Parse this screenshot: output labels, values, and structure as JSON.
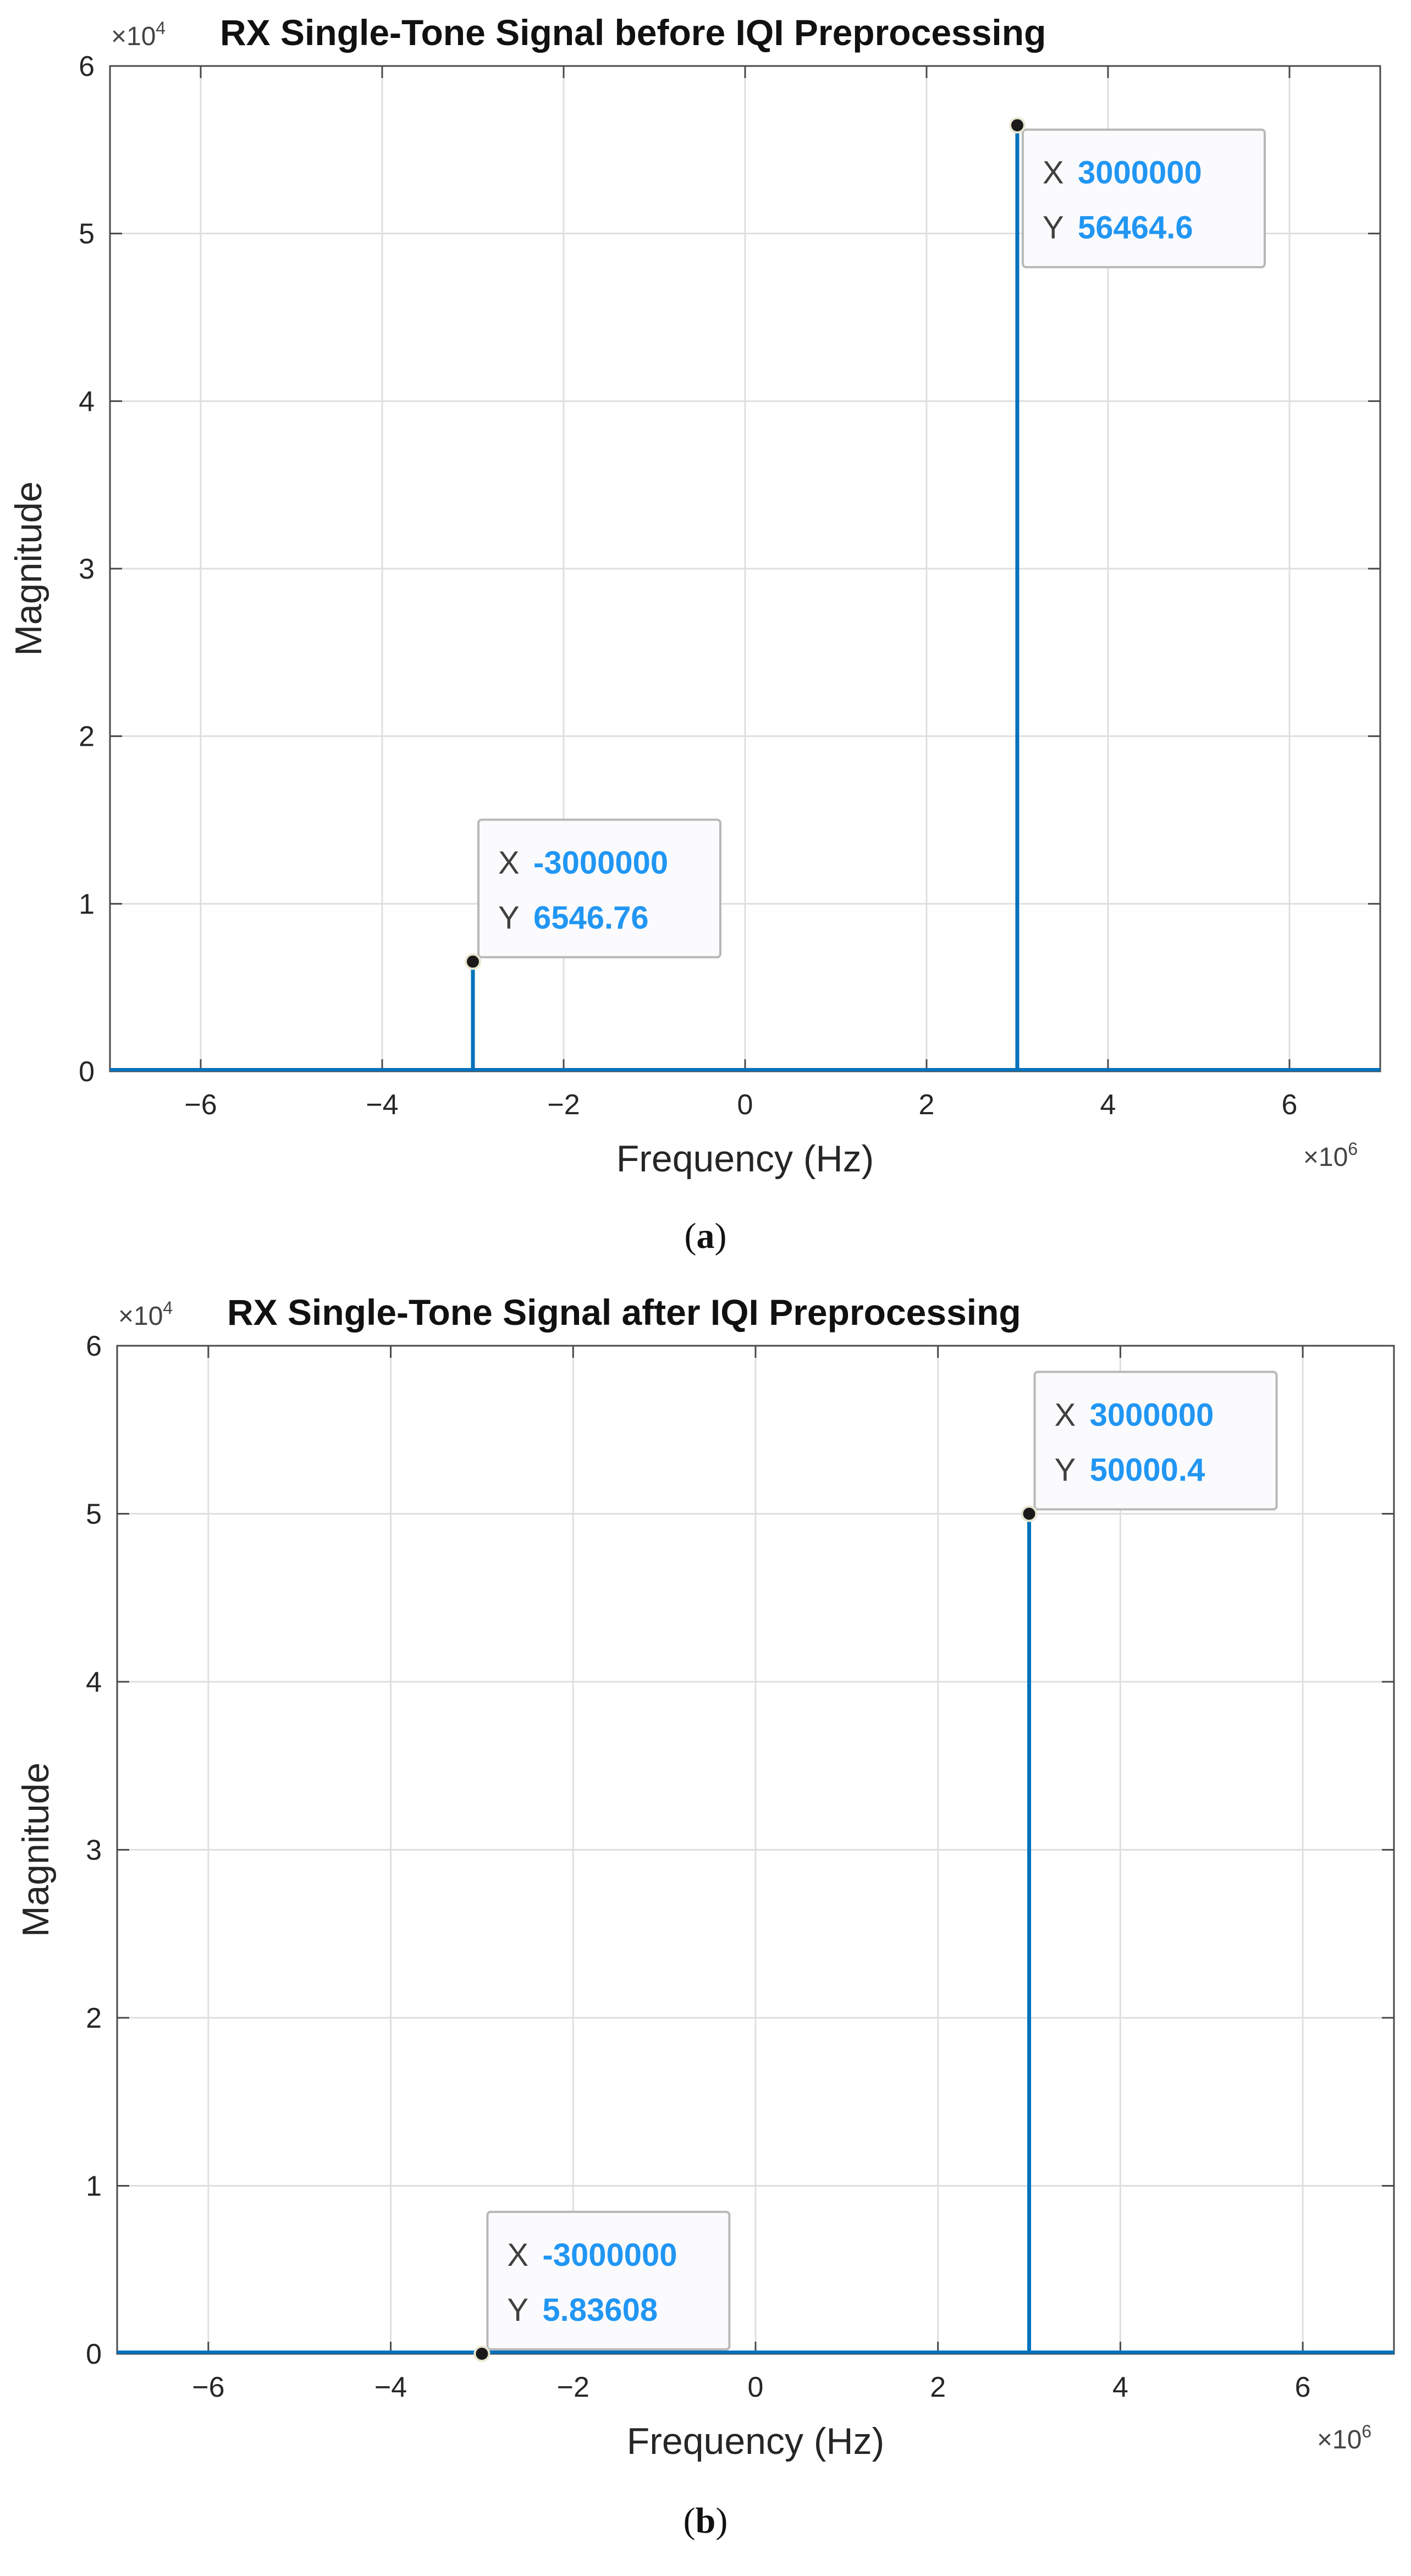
{
  "chart_data": [
    {
      "type": "stem",
      "title": "RX Single-Tone Signal before IQI Preprocessing",
      "xlabel": "Frequency (Hz)",
      "ylabel": "Magnitude",
      "y_multiplier": "×10",
      "y_multiplier_exp": "4",
      "x_multiplier": "×10",
      "x_multiplier_exp": "6",
      "xlim": [
        -7000000,
        7000000
      ],
      "ylim": [
        0,
        60000
      ],
      "xticks": [
        -6000000,
        -4000000,
        -2000000,
        0,
        2000000,
        4000000,
        6000000
      ],
      "xtick_labels": [
        "−6",
        "−4",
        "−2",
        "0",
        "2",
        "4",
        "6"
      ],
      "yticks": [
        0,
        10000,
        20000,
        30000,
        40000,
        50000,
        60000
      ],
      "ytick_labels": [
        "0",
        "1",
        "2",
        "3",
        "4",
        "5",
        "6"
      ],
      "grid": true,
      "color": "#0072BD",
      "points": [
        {
          "x": -3000000,
          "y": 6546.76
        },
        {
          "x": 3000000,
          "y": 56464.6
        }
      ],
      "datatips": [
        {
          "x_key": "X",
          "x_text": "-3000000",
          "y_key": "Y",
          "y_text": "6546.76",
          "placement": "upper-right"
        },
        {
          "x_key": "X",
          "x_text": "3000000",
          "y_key": "Y",
          "y_text": "56464.6",
          "placement": "lower-right"
        }
      ],
      "caption": "a"
    },
    {
      "type": "stem",
      "title": "RX Single-Tone Signal after IQI Preprocessing",
      "xlabel": "Frequency (Hz)",
      "ylabel": "Magnitude",
      "y_multiplier": "×10",
      "y_multiplier_exp": "4",
      "x_multiplier": "×10",
      "x_multiplier_exp": "6",
      "xlim": [
        -7000000,
        7000000
      ],
      "ylim": [
        0,
        60000
      ],
      "xticks": [
        -6000000,
        -4000000,
        -2000000,
        0,
        2000000,
        4000000,
        6000000
      ],
      "xtick_labels": [
        "−6",
        "−4",
        "−2",
        "0",
        "2",
        "4",
        "6"
      ],
      "yticks": [
        0,
        10000,
        20000,
        30000,
        40000,
        50000,
        60000
      ],
      "ytick_labels": [
        "0",
        "1",
        "2",
        "3",
        "4",
        "5",
        "6"
      ],
      "grid": true,
      "color": "#0072BD",
      "points": [
        {
          "x": -3000000,
          "y": 5.83608
        },
        {
          "x": 3000000,
          "y": 50000.4
        }
      ],
      "datatips": [
        {
          "x_key": "X",
          "x_text": "-3000000",
          "y_key": "Y",
          "y_text": "5.83608",
          "placement": "upper-right"
        },
        {
          "x_key": "X",
          "x_text": "3000000",
          "y_key": "Y",
          "y_text": "50000.4",
          "placement": "upper-right"
        }
      ],
      "caption": "b"
    }
  ]
}
